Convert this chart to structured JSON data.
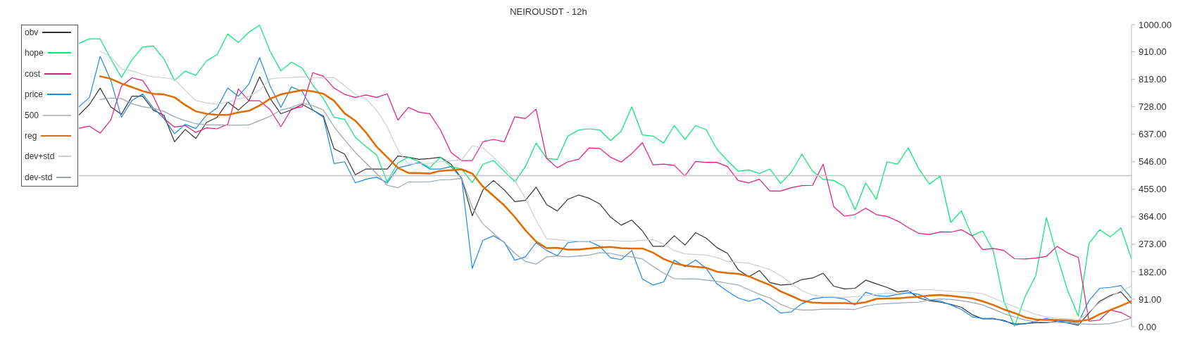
{
  "chart_data": {
    "type": "line",
    "title": "NEIROUSDT - 12h",
    "categories": [
      null,
      null,
      null,
      null,
      null,
      null,
      null,
      null,
      null,
      null,
      null,
      null,
      null,
      null,
      null,
      null,
      null,
      null,
      null,
      null,
      null,
      null,
      null,
      null,
      null,
      null,
      null,
      null,
      null,
      null,
      null,
      null,
      null,
      null,
      null,
      null,
      null,
      null,
      null,
      null,
      null,
      null,
      null,
      null,
      null,
      null,
      null,
      null,
      null,
      null,
      null,
      null,
      null,
      null,
      null,
      null,
      null,
      null,
      null,
      null,
      null,
      null,
      null,
      null,
      null,
      null,
      null,
      null,
      null,
      null,
      null,
      null,
      null,
      null,
      null,
      null,
      null,
      null,
      null,
      null,
      null,
      null,
      null,
      null,
      null,
      null,
      null,
      null,
      null,
      null,
      null,
      null,
      null,
      null,
      null,
      null,
      null,
      null,
      null,
      null
    ],
    "series": [
      {
        "name": "obv",
        "color": "#333333",
        "values": [
          701,
          736,
          790,
          728,
          703,
          763,
          763,
          717,
          700,
          612,
          653,
          623,
          676,
          693,
          744,
          717,
          748,
          827,
          755,
          705,
          718,
          736,
          717,
          697,
          589,
          571,
          503,
          522,
          522,
          522,
          565,
          561,
          554,
          557,
          561,
          538,
          491,
          367,
          453,
          484,
          453,
          414,
          418,
          462,
          404,
          383,
          422,
          436,
          425,
          406,
          363,
          336,
          353,
          317,
          266,
          266,
          301,
          270,
          311,
          293,
          262,
          243,
          189,
          165,
          186,
          146,
          138,
          140,
          156,
          161,
          177,
          134,
          125,
          127,
          154,
          142,
          130,
          115,
          119,
          95,
          86,
          81,
          74,
          64,
          40,
          26,
          26,
          21,
          6,
          10,
          13,
          13,
          18,
          12,
          5,
          45,
          84,
          103,
          115,
          76
        ]
      },
      {
        "name": "hope",
        "color": "#00e676",
        "values": [
          938,
          953,
          953,
          887,
          825,
          884,
          926,
          929,
          887,
          815,
          846,
          832,
          880,
          901,
          969,
          941,
          975,
          998,
          911,
          847,
          876,
          856,
          800,
          755,
          693,
          686,
          627,
          596,
          569,
          480,
          542,
          561,
          546,
          526,
          561,
          530,
          522,
          477,
          538,
          550,
          515,
          480,
          530,
          608,
          557,
          554,
          631,
          651,
          655,
          651,
          616,
          647,
          728,
          635,
          631,
          608,
          666,
          620,
          666,
          652,
          588,
          550,
          515,
          519,
          507,
          522,
          474,
          511,
          571,
          515,
          488,
          484,
          464,
          387,
          476,
          422,
          546,
          538,
          592,
          522,
          472,
          499,
          345,
          383,
          301,
          317,
          251,
          84,
          2,
          100,
          169,
          361,
          234,
          119,
          35,
          276,
          321,
          297,
          327,
          224
        ]
      },
      {
        "name": "cost",
        "color": "#e6197d",
        "values": [
          657,
          664,
          641,
          684,
          796,
          824,
          815,
          763,
          689,
          661,
          666,
          643,
          658,
          655,
          670,
          787,
          748,
          748,
          718,
          662,
          721,
          728,
          841,
          829,
          790,
          769,
          759,
          767,
          759,
          771,
          684,
          726,
          710,
          705,
          652,
          577,
          550,
          550,
          612,
          620,
          612,
          695,
          689,
          720,
          557,
          526,
          546,
          554,
          592,
          590,
          561,
          545,
          573,
          609,
          536,
          538,
          534,
          499,
          547,
          544,
          544,
          530,
          484,
          476,
          488,
          449,
          449,
          460,
          467,
          468,
          538,
          397,
          366,
          371,
          392,
          371,
          365,
          350,
          328,
          309,
          305,
          314,
          313,
          321,
          301,
          255,
          259,
          252,
          225,
          224,
          227,
          233,
          266,
          244,
          229,
          18,
          22,
          55,
          47,
          29
        ]
      },
      {
        "name": "price",
        "color": "#1e88e5",
        "values": [
          728,
          759,
          895,
          816,
          693,
          749,
          771,
          724,
          689,
          639,
          670,
          656,
          700,
          724,
          790,
          763,
          804,
          891,
          796,
          726,
          794,
          779,
          718,
          693,
          540,
          546,
          476,
          488,
          495,
          476,
          526,
          534,
          544,
          522,
          522,
          530,
          491,
          193,
          286,
          301,
          280,
          220,
          231,
          278,
          252,
          235,
          278,
          282,
          282,
          266,
          228,
          222,
          252,
          158,
          138,
          148,
          220,
          198,
          221,
          193,
          142,
          117,
          95,
          84,
          94,
          72,
          45,
          49,
          76,
          92,
          97,
          97,
          92,
          72,
          114,
          103,
          100,
          107,
          112,
          107,
          89,
          85,
          72,
          57,
          33,
          27,
          28,
          18,
          10,
          9,
          18,
          27,
          18,
          16,
          14,
          86,
          127,
          130,
          136,
          94
        ]
      },
      {
        "name": "500",
        "color": "#c0c0c0",
        "values": [
          500,
          500,
          500,
          500,
          500,
          500,
          500,
          500,
          500,
          500,
          500,
          500,
          500,
          500,
          500,
          500,
          500,
          500,
          500,
          500,
          500,
          500,
          500,
          500,
          500,
          500,
          500,
          500,
          500,
          500,
          500,
          500,
          500,
          500,
          500,
          500,
          500,
          500,
          500,
          500,
          500,
          500,
          500,
          500,
          500,
          500,
          500,
          500,
          500,
          500,
          500,
          500,
          500,
          500,
          500,
          500,
          500,
          500,
          500,
          500,
          500,
          500,
          500,
          500,
          500,
          500,
          500,
          500,
          500,
          500,
          500,
          500,
          500,
          500,
          500,
          500,
          500,
          500,
          500,
          500,
          500,
          500,
          500,
          500,
          500,
          500,
          500,
          500,
          500,
          500,
          500,
          500,
          500,
          500,
          500,
          500,
          500,
          500,
          500,
          500
        ]
      },
      {
        "name": "reg",
        "color": "#e06c00",
        "values": [
          null,
          null,
          829,
          821,
          805,
          793,
          780,
          771,
          769,
          759,
          734,
          713,
          705,
          701,
          701,
          709,
          715,
          732,
          755,
          769,
          776,
          783,
          779,
          771,
          748,
          706,
          682,
          643,
          596,
          561,
          526,
          509,
          509,
          507,
          516,
          518,
          521,
          507,
          464,
          433,
          402,
          363,
          319,
          282,
          260,
          261,
          255,
          255,
          259,
          262,
          264,
          260,
          259,
          259,
          245,
          224,
          210,
          202,
          198,
          195,
          182,
          178,
          175,
          167,
          152,
          138,
          117,
          102,
          86,
          80,
          78,
          78,
          78,
          76,
          81,
          92,
          93,
          94,
          97,
          99,
          103,
          105,
          102,
          98,
          94,
          84,
          72,
          57,
          45,
          31,
          24,
          22,
          22,
          21,
          18,
          23,
          41,
          55,
          69,
          84
        ]
      },
      {
        "name": "dev+std",
        "color": "#c9ced3",
        "values": [
          null,
          null,
          912,
          894,
          853,
          847,
          835,
          827,
          824,
          819,
          783,
          749,
          741,
          736,
          744,
          754,
          762,
          783,
          820,
          824,
          825,
          827,
          825,
          824,
          825,
          798,
          769,
          754,
          717,
          662,
          585,
          538,
          540,
          541,
          546,
          550,
          552,
          599,
          592,
          561,
          526,
          484,
          425,
          352,
          291,
          288,
          284,
          283,
          283,
          286,
          286,
          283,
          283,
          286,
          288,
          274,
          252,
          241,
          239,
          237,
          229,
          216,
          213,
          210,
          200,
          189,
          169,
          144,
          119,
          105,
          99,
          98,
          97,
          99,
          103,
          107,
          111,
          109,
          117,
          122,
          123,
          120,
          117,
          116,
          113,
          109,
          95,
          80,
          66,
          53,
          41,
          31,
          28,
          26,
          22,
          49,
          80,
          99,
          119,
          134
        ]
      },
      {
        "name": "dev-std",
        "color": "#9aa6b0",
        "values": [
          null,
          null,
          752,
          757,
          755,
          738,
          728,
          723,
          713,
          695,
          682,
          672,
          668,
          668,
          667,
          667,
          668,
          682,
          697,
          717,
          726,
          740,
          732,
          717,
          662,
          618,
          577,
          542,
          507,
          468,
          460,
          479,
          479,
          480,
          486,
          487,
          491,
          394,
          340,
          309,
          278,
          243,
          216,
          207,
          231,
          234,
          231,
          234,
          237,
          245,
          243,
          235,
          231,
          224,
          200,
          177,
          159,
          158,
          158,
          154,
          150,
          144,
          138,
          123,
          107,
          95,
          74,
          60,
          55,
          55,
          58,
          58,
          58,
          57,
          68,
          74,
          76,
          78,
          80,
          81,
          89,
          92,
          90,
          86,
          80,
          72,
          58,
          43,
          32,
          22,
          16,
          15,
          14,
          13,
          10,
          8,
          8,
          10,
          18,
          29
        ]
      }
    ],
    "ylim": [
      0,
      1000
    ],
    "yticks": [
      {
        "value": 0,
        "label": "0.00"
      },
      {
        "value": 91,
        "label": "91.00"
      },
      {
        "value": 182,
        "label": "182.00"
      },
      {
        "value": 273,
        "label": "273.00"
      },
      {
        "value": 364,
        "label": "364.00"
      },
      {
        "value": 455,
        "label": "455.00"
      },
      {
        "value": 546,
        "label": "546.00"
      },
      {
        "value": 637,
        "label": "637.00"
      },
      {
        "value": 728,
        "label": "728.00"
      },
      {
        "value": 819,
        "label": "819.00"
      },
      {
        "value": 910,
        "label": "910.00"
      },
      {
        "value": 1000,
        "label": "1000.00"
      }
    ],
    "legend": "top left",
    "marker": "none",
    "tick_labels": "y"
  }
}
